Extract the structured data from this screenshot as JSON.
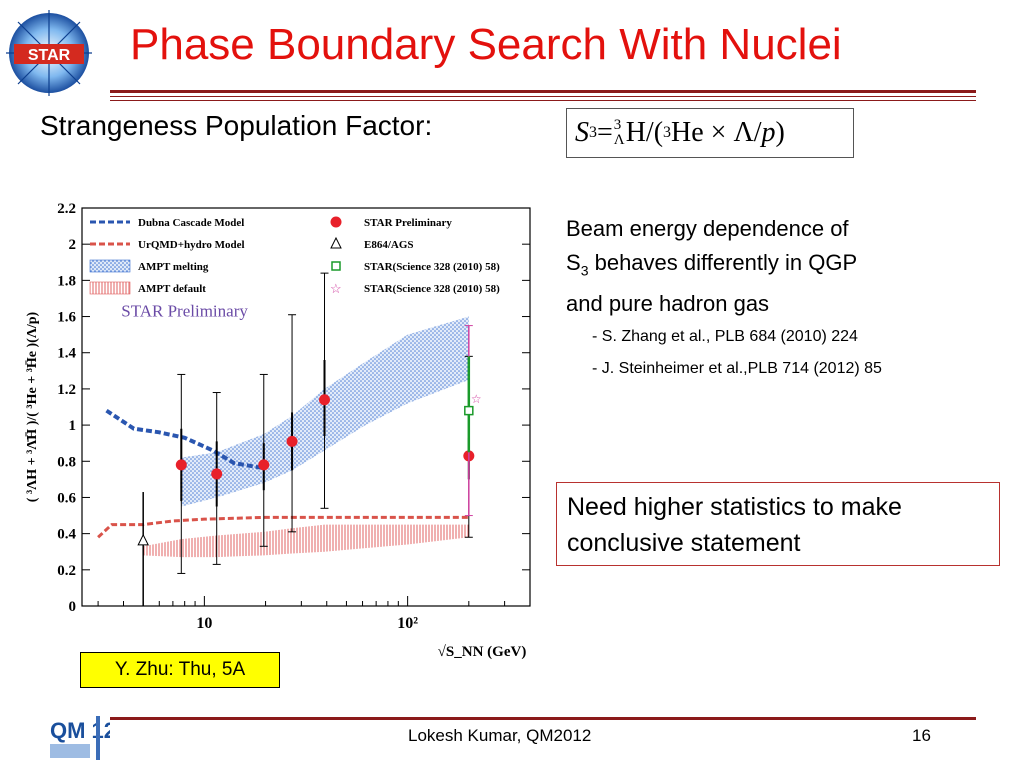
{
  "header": {
    "title": "Phase Boundary Search With Nuclei",
    "logo_text": "STAR"
  },
  "subtitle": "Strangeness Population Factor:",
  "formula": {
    "lhs": "S",
    "lhs_sub": "3",
    "op": " = ",
    "sup3a": "3",
    "sub_lambda": "Λ",
    "part1": "H/(",
    "sup3b": "3",
    "part2": "He × Λ/",
    "p": "p",
    "close": ")"
  },
  "description": {
    "line1": "Beam energy dependence of",
    "line2_prefix": "S",
    "line2_sub": "3",
    "line2_rest": " behaves differently in QGP",
    "line3": "and pure hadron gas",
    "ref1": "- S. Zhang et al., PLB 684 (2010) 224",
    "ref2": "- J. Steinheimer et al.,PLB 714 (2012) 85"
  },
  "note": "Need higher statistics to make conclusive statement",
  "talk_tag": "Y. Zhu: Thu, 5A",
  "footer": {
    "text": "Lokesh Kumar, QM2012",
    "page": "16",
    "logo_text": "QM 12"
  },
  "chart_data": {
    "type": "scatter",
    "xscale": "log",
    "xlim": [
      2.5,
      400
    ],
    "ylim": [
      0,
      2.2
    ],
    "xlabel": "√S_NN (GeV)",
    "ylabel": "( ³ΛH + ³Λ̄H̄ )/( ³He + ³H̄e )(Λ/p)",
    "x_ticks": [
      10,
      100
    ],
    "x_tick_labels": [
      "10",
      "10²"
    ],
    "y_ticks": [
      0,
      0.2,
      0.4,
      0.6,
      0.8,
      1,
      1.2,
      1.4,
      1.6,
      1.8,
      2,
      2.2
    ],
    "y_tick_labels": [
      "0",
      "0.2",
      "0.4",
      "0.6",
      "0.8",
      "1",
      "1.2",
      "1.4",
      "1.6",
      "1.8",
      "2",
      "2.2"
    ],
    "annotation": "STAR Preliminary",
    "legend": [
      {
        "label": "Dubna Cascade Model",
        "style": "dashed",
        "color": "#2a56b0"
      },
      {
        "label": "UrQMD+hydro Model",
        "style": "dashed",
        "color": "#d9534a"
      },
      {
        "label": "AMPT melting",
        "style": "band-dots",
        "color": "#3a6fd0"
      },
      {
        "label": "AMPT default",
        "style": "band-stripes",
        "color": "#e06060"
      },
      {
        "label": "STAR Preliminary",
        "style": "circle",
        "color": "#e8202a"
      },
      {
        "label": "E864/AGS",
        "style": "triangle",
        "color": "#000000"
      },
      {
        "label": "STAR(Science 328 (2010) 58)",
        "style": "square",
        "color": "#1a9a2a"
      },
      {
        "label": "STAR(Science 328 (2010) 58)",
        "style": "star",
        "color": "#d040a0"
      }
    ],
    "series": [
      {
        "name": "STAR Preliminary",
        "x": [
          7.7,
          11.5,
          19.6,
          27,
          39,
          200
        ],
        "y": [
          0.78,
          0.73,
          0.78,
          0.91,
          1.14,
          0.83
        ],
        "err_lo": [
          0.2,
          0.18,
          0.14,
          0.16,
          0.2,
          0.13
        ],
        "err_hi": [
          0.2,
          0.18,
          0.12,
          0.16,
          0.22,
          0.1
        ],
        "sys_lo": [
          0.6,
          0.5,
          0.45,
          0.5,
          0.6,
          0.45
        ],
        "sys_hi": [
          0.5,
          0.45,
          0.5,
          0.7,
          0.7,
          0.55
        ]
      },
      {
        "name": "E864/AGS",
        "x": [
          5
        ],
        "y": [
          0.36
        ],
        "err_lo": [
          0.36
        ],
        "err_hi": [
          0.27
        ]
      },
      {
        "name": "STAR(Science 328 (2010) 58)",
        "x": [
          200
        ],
        "y": [
          1.08
        ],
        "err_lo": [
          0.23
        ],
        "err_hi": [
          0.3
        ]
      },
      {
        "name": "STAR(Science 328 (2010) 58)",
        "x": [
          200
        ],
        "y": [
          1.15
        ],
        "err_lo": [
          0.65
        ],
        "err_hi": [
          0.4
        ]
      },
      {
        "name": "Dubna Cascade Model",
        "x": [
          3.3,
          4.5,
          6,
          8,
          11,
          14,
          20
        ],
        "y": [
          1.08,
          0.98,
          0.96,
          0.93,
          0.86,
          0.79,
          0.76
        ]
      },
      {
        "name": "UrQMD+hydro Model",
        "x": [
          3,
          3.5,
          5,
          7,
          10,
          20,
          50,
          100,
          200
        ],
        "y": [
          0.38,
          0.45,
          0.45,
          0.47,
          0.48,
          0.49,
          0.49,
          0.49,
          0.49
        ]
      },
      {
        "name": "AMPT melting",
        "x": [
          7.7,
          11.5,
          19.6,
          27,
          39,
          62,
          100,
          200
        ],
        "y_low": [
          0.55,
          0.6,
          0.68,
          0.75,
          0.86,
          1.0,
          1.12,
          1.25
        ],
        "y_high": [
          0.82,
          0.85,
          0.95,
          1.05,
          1.2,
          1.35,
          1.5,
          1.6
        ]
      },
      {
        "name": "AMPT default",
        "x": [
          5,
          7.7,
          11.5,
          19.6,
          27,
          39,
          62,
          100,
          200
        ],
        "y_low": [
          0.28,
          0.27,
          0.27,
          0.28,
          0.29,
          0.3,
          0.32,
          0.34,
          0.38
        ],
        "y_high": [
          0.33,
          0.37,
          0.39,
          0.41,
          0.43,
          0.45,
          0.45,
          0.45,
          0.45
        ]
      }
    ]
  }
}
